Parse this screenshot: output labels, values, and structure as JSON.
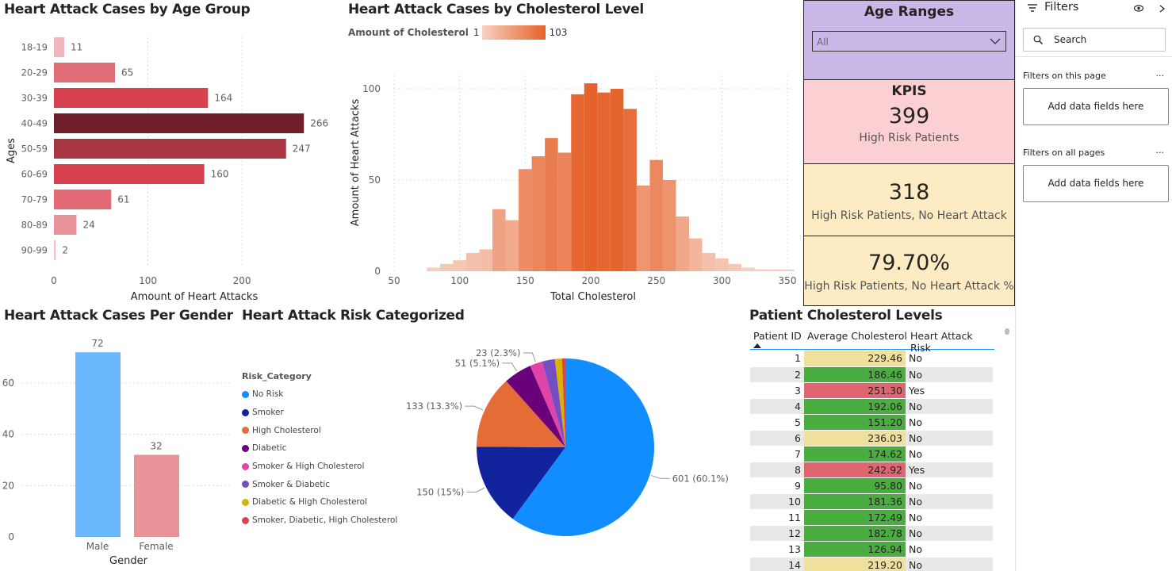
{
  "age_chart": {
    "title": "Heart Attack Cases by Age Group",
    "xlabel": "Amount of Heart Attacks",
    "ylabel": "Ages",
    "xticks": [
      "0",
      "100",
      "200"
    ],
    "chart_data": {
      "type": "bar",
      "orientation": "horizontal",
      "categories": [
        "18-19",
        "20-29",
        "30-39",
        "40-49",
        "50-59",
        "60-69",
        "70-79",
        "80-89",
        "90-99"
      ],
      "values": [
        11,
        65,
        164,
        266,
        247,
        160,
        61,
        24,
        2
      ],
      "xlim": [
        0,
        270
      ],
      "colors": [
        "#f0b8bd",
        "#e06e77",
        "#d9414f",
        "#6e1f29",
        "#a83542",
        "#d9414f",
        "#e36a74",
        "#e8929a",
        "#f2c4c9"
      ]
    }
  },
  "chol_chart": {
    "title": "Heart Attack Cases by Cholesterol Level",
    "legend_label": "Amount of Cholesterol",
    "legend_min": "1",
    "legend_max": "103",
    "xlabel": "Total Cholesterol",
    "ylabel": "Amount of Heart Attacks",
    "xticks": [
      "50",
      "100",
      "150",
      "200",
      "250",
      "300",
      "350"
    ],
    "yticks": [
      "0",
      "50",
      "100"
    ],
    "chart_data": {
      "type": "bar",
      "subtype": "histogram",
      "bin_width": 10,
      "bin_starts": [
        75,
        85,
        95,
        105,
        115,
        125,
        135,
        145,
        155,
        165,
        175,
        185,
        195,
        205,
        215,
        225,
        235,
        245,
        255,
        265,
        275,
        285,
        295,
        305,
        315,
        325,
        335,
        345
      ],
      "values": [
        2,
        4,
        6,
        10,
        12,
        34,
        28,
        56,
        63,
        73,
        65,
        97,
        103,
        98,
        100,
        89,
        47,
        61,
        50,
        30,
        18,
        10,
        7,
        4,
        2,
        1,
        1,
        1
      ],
      "xlim": [
        45,
        355
      ],
      "ylim": [
        0,
        110
      ],
      "color_low": "#f7d1c2",
      "color_high": "#e5622b"
    }
  },
  "age_ranges": {
    "title": "Age Ranges",
    "selected": "All"
  },
  "kpis": {
    "title": "KPIS",
    "card1": {
      "value": "399",
      "label": "High Risk Patients"
    },
    "card2": {
      "value": "318",
      "label": "High Risk Patients, No Heart Attack"
    },
    "card3": {
      "value": "79.70%",
      "label": "High Risk Patients, No Heart Attack %"
    }
  },
  "gender_chart": {
    "title": "Heart Attack Cases Per Gender",
    "xlabel": "Gender",
    "yticks": [
      "0",
      "20",
      "40",
      "60"
    ],
    "chart_data": {
      "type": "bar",
      "categories": [
        "Male",
        "Female"
      ],
      "values": [
        72,
        32
      ],
      "ylim": [
        0,
        75
      ],
      "colors": [
        "#6bb8fe",
        "#e8929a"
      ]
    }
  },
  "risk_chart": {
    "title": "Heart Attack Risk Categorized",
    "legend_title": "Risk_Category",
    "chart_data": {
      "type": "pie",
      "labels": [
        "No Risk",
        "Smoker",
        "High Cholesterol",
        "Diabetic",
        "Smoker & High Cholesterol",
        "Smoker & Diabetic",
        "Diabetic & High Cholesterol",
        "Smoker, Diabetic, High Cholesterol"
      ],
      "values": [
        601,
        150,
        133,
        51,
        23,
        23,
        13,
        6
      ],
      "data_labels": [
        "601 (60.1%)",
        "150 (15%)",
        "133 (13.3%)",
        "51 (5.1%)",
        "23 (2.3%)",
        "",
        "",
        ""
      ],
      "colors": [
        "#118dff",
        "#12239e",
        "#e66c37",
        "#6b007b",
        "#e044a7",
        "#744ec2",
        "#d9b300",
        "#d64550"
      ]
    }
  },
  "patient_table": {
    "title": "Patient Cholesterol Levels",
    "columns": [
      "Patient ID",
      "Average Cholesterol",
      "Heart Attack Risk"
    ],
    "rows": [
      {
        "id": "1",
        "chol": "229.46",
        "risk": "No",
        "color": "#efe19b"
      },
      {
        "id": "2",
        "chol": "186.46",
        "risk": "No",
        "color": "#4aad3f"
      },
      {
        "id": "3",
        "chol": "251.30",
        "risk": "Yes",
        "color": "#df6670"
      },
      {
        "id": "4",
        "chol": "192.06",
        "risk": "No",
        "color": "#4aad3f"
      },
      {
        "id": "5",
        "chol": "151.20",
        "risk": "No",
        "color": "#4aad3f"
      },
      {
        "id": "6",
        "chol": "236.03",
        "risk": "No",
        "color": "#efe19b"
      },
      {
        "id": "7",
        "chol": "174.62",
        "risk": "No",
        "color": "#4aad3f"
      },
      {
        "id": "8",
        "chol": "242.92",
        "risk": "Yes",
        "color": "#df6670"
      },
      {
        "id": "9",
        "chol": "95.80",
        "risk": "No",
        "color": "#4aad3f"
      },
      {
        "id": "10",
        "chol": "181.36",
        "risk": "No",
        "color": "#4aad3f"
      },
      {
        "id": "11",
        "chol": "172.49",
        "risk": "No",
        "color": "#4aad3f"
      },
      {
        "id": "12",
        "chol": "182.78",
        "risk": "No",
        "color": "#4aad3f"
      },
      {
        "id": "13",
        "chol": "126.94",
        "risk": "No",
        "color": "#4aad3f"
      },
      {
        "id": "14",
        "chol": "219.20",
        "risk": "No",
        "color": "#efe19b"
      }
    ]
  },
  "filters": {
    "title": "Filters",
    "search_placeholder": "Search",
    "on_page": "Filters on this page",
    "on_all": "Filters on all pages",
    "add_fields": "Add data fields here",
    "more": "..."
  }
}
